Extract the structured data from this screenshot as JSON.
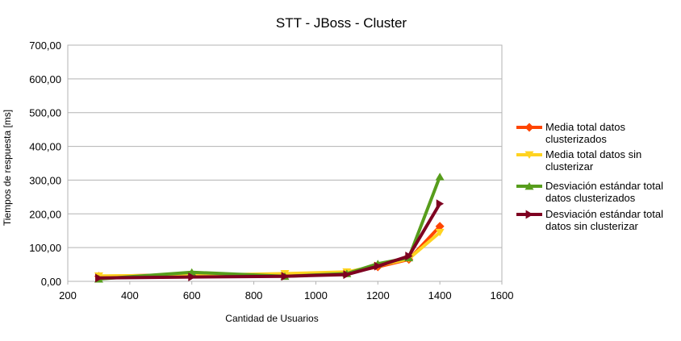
{
  "chart_data": {
    "type": "line",
    "title": "STT - JBoss - Cluster",
    "xlabel": "Cantidad de Usuarios",
    "ylabel": "Tiempos de respuesta [ms]",
    "xlim": [
      200,
      1600
    ],
    "ylim": [
      0,
      700
    ],
    "xticks": [
      200,
      400,
      600,
      800,
      1000,
      1200,
      1400,
      1600
    ],
    "xtick_labels": [
      "200",
      "400",
      "600",
      "800",
      "1000",
      "1200",
      "1400",
      "1600"
    ],
    "yticks": [
      0,
      100,
      200,
      300,
      400,
      500,
      600,
      700
    ],
    "ytick_labels": [
      "0,00",
      "100,00",
      "200,00",
      "300,00",
      "400,00",
      "500,00",
      "600,00",
      "700,00"
    ],
    "grid": "horizontal",
    "legend_position": "right",
    "x": [
      300,
      600,
      900,
      1100,
      1200,
      1300,
      1400
    ],
    "series": [
      {
        "name": "Media total datos clusterizados",
        "legend_lines": [
          "Media total datos",
          "clusterizados"
        ],
        "color": "#ff4500",
        "marker": "diamond",
        "values": [
          15,
          20,
          20,
          25,
          43,
          65,
          163
        ]
      },
      {
        "name": "Media total datos sin clusterizar",
        "legend_lines": [
          "Media total datos sin",
          "clusterizar"
        ],
        "color": "#ffd320",
        "marker": "triangle-down",
        "values": [
          16,
          18,
          23,
          28,
          46,
          67,
          145
        ]
      },
      {
        "name": "Desviación estándar total datos clusterizados",
        "legend_lines": [
          "Desviación estándar total",
          "datos clusterizados"
        ],
        "color": "#579d1c",
        "marker": "triangle-up",
        "values": [
          7,
          27,
          15,
          23,
          52,
          70,
          310
        ]
      },
      {
        "name": "Desviación estándar total datos sin clusterizar",
        "legend_lines": [
          "Desviación estándar total",
          "datos sin clusterizar"
        ],
        "color": "#7e0021",
        "marker": "triangle-right",
        "values": [
          10,
          13,
          15,
          20,
          45,
          75,
          230
        ]
      }
    ]
  }
}
